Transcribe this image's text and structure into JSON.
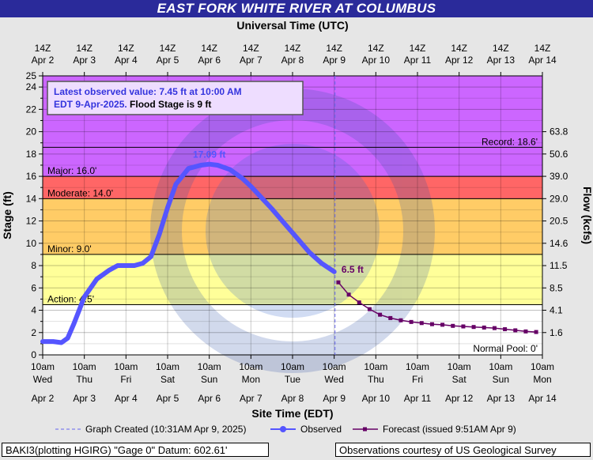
{
  "title": "EAST FORK WHITE RIVER AT COLUMBUS",
  "chart_data": {
    "type": "line",
    "top_axis_label": "Universal Time (UTC)",
    "top_ticks": [
      [
        "14Z",
        "Apr 2"
      ],
      [
        "14Z",
        "Apr 3"
      ],
      [
        "14Z",
        "Apr 4"
      ],
      [
        "14Z",
        "Apr 5"
      ],
      [
        "14Z",
        "Apr 6"
      ],
      [
        "14Z",
        "Apr 7"
      ],
      [
        "14Z",
        "Apr 8"
      ],
      [
        "14Z",
        "Apr 9"
      ],
      [
        "14Z",
        "Apr 10"
      ],
      [
        "14Z",
        "Apr 11"
      ],
      [
        "14Z",
        "Apr 12"
      ],
      [
        "14Z",
        "Apr 13"
      ],
      [
        "14Z",
        "Apr 14"
      ]
    ],
    "bottom_ticks": [
      [
        "10am",
        "Wed",
        "Apr 2"
      ],
      [
        "10am",
        "Thu",
        "Apr 3"
      ],
      [
        "10am",
        "Fri",
        "Apr 4"
      ],
      [
        "10am",
        "Sat",
        "Apr 5"
      ],
      [
        "10am",
        "Sun",
        "Apr 6"
      ],
      [
        "10am",
        "Mon",
        "Apr 7"
      ],
      [
        "10am",
        "Tue",
        "Apr 8"
      ],
      [
        "10am",
        "Wed",
        "Apr 9"
      ],
      [
        "10am",
        "Thu",
        "Apr 10"
      ],
      [
        "10am",
        "Fri",
        "Apr 11"
      ],
      [
        "10am",
        "Sat",
        "Apr 12"
      ],
      [
        "10am",
        "Sun",
        "Apr 13"
      ],
      [
        "10am",
        "Mon",
        "Apr 14"
      ]
    ],
    "xlabel": "Site Time (EDT)",
    "ylabel": "Stage (ft)",
    "ylabel_right": "Flow (kcfs)",
    "x_unit": "days after 10am EDT Apr 2",
    "xlim": [
      0,
      12
    ],
    "ylim": [
      0,
      25
    ],
    "y_ticks": [
      0,
      2,
      4,
      6,
      8,
      10,
      12,
      14,
      16,
      18,
      20,
      22,
      24,
      25
    ],
    "flow_ticks": [
      {
        "stage": 2,
        "label": "1.6"
      },
      {
        "stage": 4,
        "label": "4.1"
      },
      {
        "stage": 6,
        "label": "8.5"
      },
      {
        "stage": 8,
        "label": "11.5"
      },
      {
        "stage": 10,
        "label": "14.6"
      },
      {
        "stage": 12,
        "label": "20.5"
      },
      {
        "stage": 14,
        "label": "29.0"
      },
      {
        "stage": 16,
        "label": "39.0"
      },
      {
        "stage": 18,
        "label": "50.6"
      },
      {
        "stage": 20,
        "label": "63.8"
      }
    ],
    "zones": [
      {
        "name": "normal",
        "from": 0,
        "to": 4.5,
        "color": "#ffffff"
      },
      {
        "name": "action",
        "from": 4.5,
        "to": 9,
        "color": "#ffff99"
      },
      {
        "name": "minor",
        "from": 9,
        "to": 14,
        "color": "#ffcc66"
      },
      {
        "name": "moderate",
        "from": 14,
        "to": 16,
        "color": "#ff6666"
      },
      {
        "name": "major",
        "from": 16,
        "to": 25,
        "color": "#cc66ff"
      }
    ],
    "thresholds": [
      {
        "label": "Action: 4.5'",
        "value": 4.5,
        "side": "left"
      },
      {
        "label": "Minor: 9.0'",
        "value": 9.0,
        "side": "left"
      },
      {
        "label": "Moderate: 14.0'",
        "value": 14.0,
        "side": "left"
      },
      {
        "label": "Major: 16.0'",
        "value": 16.0,
        "side": "left"
      },
      {
        "label": "Record: 18.6'",
        "value": 18.6,
        "side": "right"
      }
    ],
    "normal_pool_label": "Normal Pool: 0'",
    "latest_box": {
      "line1": "Latest observed value: 7.45 ft at 10:00 AM",
      "line2a": "EDT 9-Apr-2025.",
      "line2b": "Flood Stage is 9 ft"
    },
    "peak_label": "17.09 ft",
    "forecast_start_label": "6.5 ft",
    "graph_created_x": 7.02,
    "observed": {
      "name": "Observed",
      "color": "#5555ff",
      "x": [
        0,
        0.25,
        0.45,
        0.6,
        0.75,
        1.0,
        1.3,
        1.6,
        1.8,
        2.0,
        2.2,
        2.4,
        2.6,
        2.8,
        3.0,
        3.2,
        3.5,
        3.8,
        4.0,
        4.2,
        4.5,
        4.8,
        5.0,
        5.2,
        5.5,
        5.8,
        6.1,
        6.4,
        6.7,
        7.0
      ],
      "y": [
        1.2,
        1.2,
        1.1,
        1.5,
        2.8,
        5.2,
        6.8,
        7.6,
        8.0,
        8.0,
        8.0,
        8.2,
        8.8,
        10.8,
        13.2,
        15.3,
        16.7,
        17.0,
        17.09,
        17.0,
        16.6,
        15.8,
        15.1,
        14.3,
        13.1,
        11.8,
        10.5,
        9.2,
        8.2,
        7.45
      ]
    },
    "forecast": {
      "name": "Forecast (issued 9:51AM Apr 9)",
      "color": "#660066",
      "x": [
        7.1,
        7.35,
        7.6,
        7.85,
        8.1,
        8.35,
        8.6,
        8.85,
        9.1,
        9.35,
        9.6,
        9.85,
        10.1,
        10.35,
        10.6,
        10.85,
        11.1,
        11.35,
        11.6,
        11.85
      ],
      "y": [
        6.5,
        5.4,
        4.7,
        4.1,
        3.6,
        3.3,
        3.1,
        2.95,
        2.85,
        2.75,
        2.7,
        2.6,
        2.55,
        2.5,
        2.45,
        2.4,
        2.3,
        2.2,
        2.1,
        2.05
      ]
    },
    "legend": [
      {
        "label": "Graph Created (10:31AM Apr 9, 2025)",
        "style": "dashed"
      },
      {
        "label": "Observed",
        "style": "observed"
      },
      {
        "label": "Forecast (issued 9:51AM Apr 9)",
        "style": "forecast"
      }
    ],
    "watermark": "NATIONAL OCEANIC AND ATMOSPHERIC ADMINISTRATION U.S. DEPARTMENT OF COMMERCE NOAA"
  },
  "footer": {
    "left": "BAKI3(plotting HGIRG) \"Gage 0\" Datum: 602.61'",
    "right": "Observations courtesy of US Geological Survey"
  }
}
